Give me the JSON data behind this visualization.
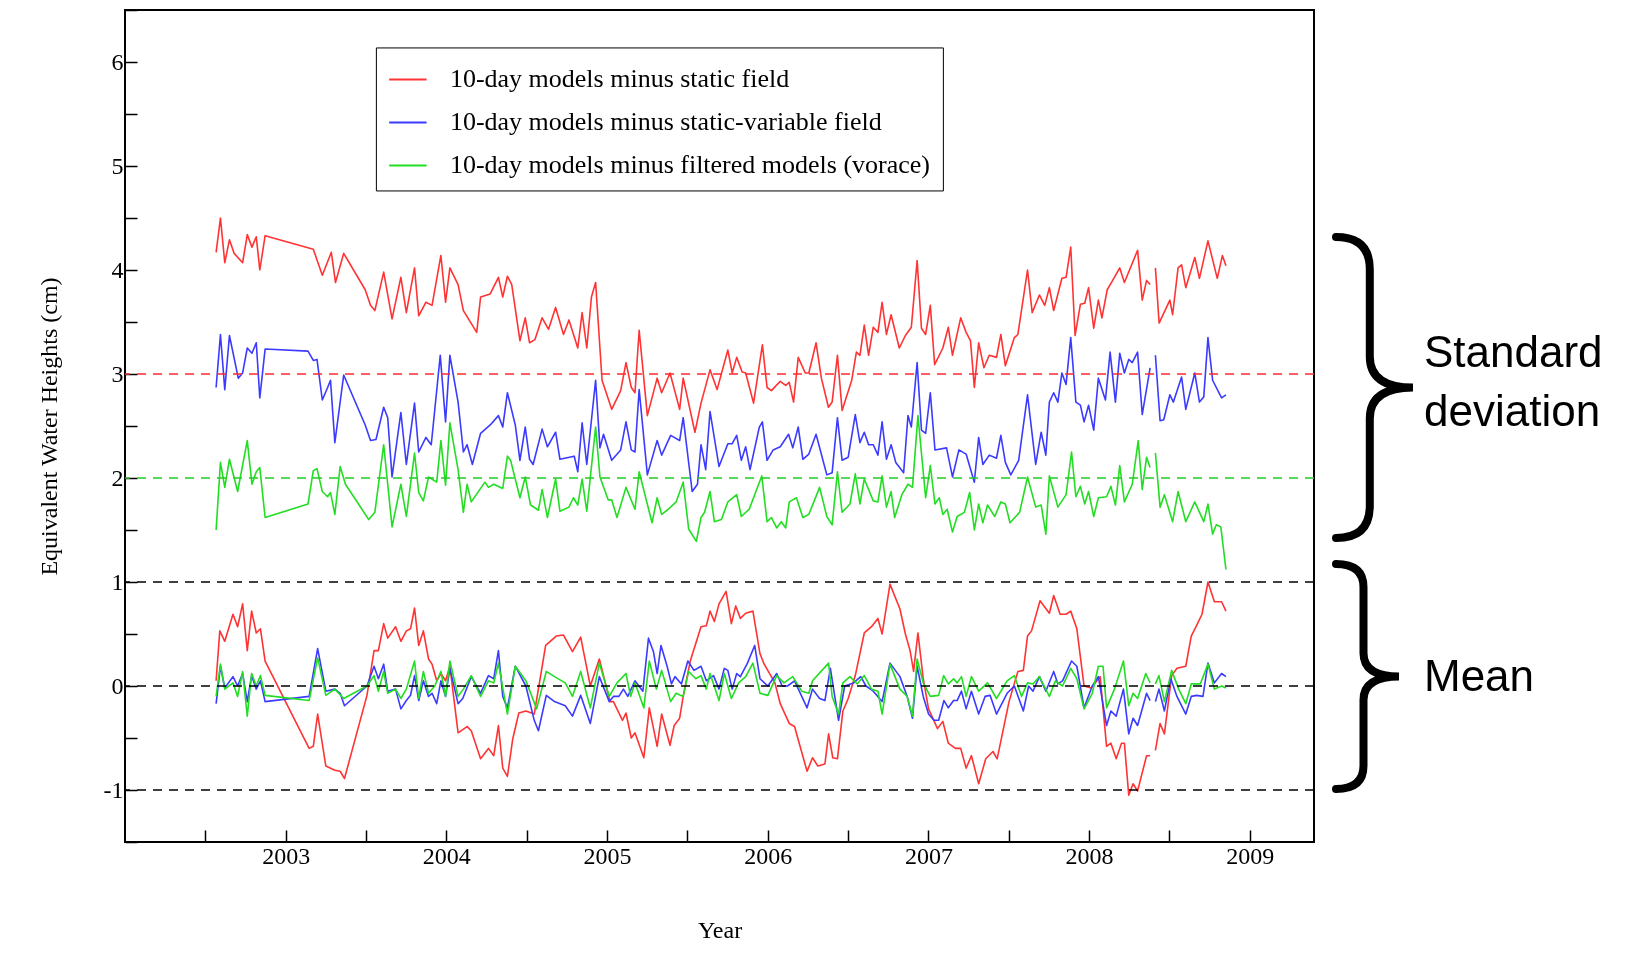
{
  "chart_data": {
    "type": "line",
    "xlabel": "Year",
    "ylabel": "Equivalent Water Heights (cm)",
    "xlim": [
      2002,
      2009.4
    ],
    "ylim": [
      -1.5,
      6.5
    ],
    "xticks": [
      {
        "value": 2002.5,
        "label": null
      },
      2003,
      {
        "value": 2003.5,
        "label": null
      },
      2004,
      {
        "value": 2004.5,
        "label": null
      },
      2005,
      {
        "value": 2005.5,
        "label": null
      },
      2006,
      {
        "value": 2006.5,
        "label": null
      },
      2007,
      {
        "value": 2007.5,
        "label": null
      },
      2008,
      {
        "value": 2008.5,
        "label": null
      },
      2009
    ],
    "yticks": [
      {
        "value": -1.5,
        "label": null
      },
      -1,
      {
        "value": -0.5,
        "label": null
      },
      0,
      {
        "value": 0.5,
        "label": null
      },
      1,
      {
        "value": 1.5,
        "label": null
      },
      2,
      {
        "value": 2.5,
        "label": null
      },
      3,
      {
        "value": 3.5,
        "label": null
      },
      4,
      {
        "value": 4.5,
        "label": null
      },
      5,
      {
        "value": 5.5,
        "label": null
      },
      6,
      {
        "value": 6.5,
        "label": null
      }
    ],
    "legend": "top",
    "annotations": [
      "Standard deviation",
      "Mean"
    ],
    "ref_lines": [
      {
        "axis": "y",
        "value": 3,
        "color": "#ff2a2a",
        "line_style": "dashed"
      },
      {
        "axis": "y",
        "value": 2,
        "color": "#22cc22",
        "line_style": "dashed"
      },
      {
        "axis": "y",
        "value": 1,
        "color": "#000000",
        "line_style": "dashed"
      },
      {
        "axis": "y",
        "value": 0,
        "color": "#000000",
        "line_style": "dashed"
      },
      {
        "axis": "y",
        "value": -1,
        "color": "#000000",
        "line_style": "dashed"
      }
    ],
    "series": [
      {
        "name": "10-day models minus static field",
        "color": "#ff3333",
        "x": [
          2002.567,
          2002.594,
          2002.621,
          2002.65,
          2002.679,
          2002.732,
          2002.761,
          2002.79,
          2002.817,
          2002.839,
          2002.872,
          2003.172,
          2003.228,
          2003.284,
          2003.31,
          2003.361,
          2003.495,
          2003.528,
          2003.555,
          2003.61,
          2003.662,
          2003.717,
          2003.751,
          2003.802,
          2003.828,
          2003.873,
          2003.911,
          2003.966,
          2003.995,
          2004.022,
          2004.073,
          2004.106,
          2004.189,
          2004.213,
          2004.273,
          2004.324,
          2004.351,
          2004.38,
          2004.407,
          2004.458,
          2004.491,
          2004.518,
          2004.551,
          2004.596,
          2004.636,
          2004.68,
          2004.729,
          2004.763,
          2004.818,
          2004.845,
          2004.874,
          2004.903,
          2004.929,
          2004.969,
          2005.029,
          2005.085,
          2005.118,
          2005.151,
          2005.174,
          2005.2,
          2005.251,
          2005.312,
          2005.34,
          2005.392,
          2005.452,
          2005.474,
          2005.547,
          2005.585,
          2005.641,
          2005.685,
          2005.752,
          2005.779,
          2005.807,
          2005.841,
          2005.863,
          2005.912,
          2005.967,
          2005.996,
          2006.023,
          2006.078,
          2006.112,
          2006.134,
          2006.161,
          2006.19,
          2006.234,
          2006.256,
          2006.301,
          2006.334,
          2006.378,
          2006.401,
          2006.434,
          2006.463,
          2006.523,
          2006.552,
          2006.574,
          2006.601,
          2006.628,
          2006.657,
          2006.686,
          2006.712,
          2006.739,
          2006.768,
          2006.819,
          2006.857,
          2006.894,
          2006.93,
          2006.957,
          2006.983,
          2007.012,
          2007.039,
          2007.09,
          2007.124,
          2007.15,
          2007.201,
          2007.235,
          2007.262,
          2007.286,
          2007.313,
          2007.346,
          2007.379,
          2007.424,
          2007.451,
          2007.479,
          2007.535,
          2007.557,
          2007.617,
          2007.646,
          2007.691,
          2007.724,
          2007.753,
          2007.78,
          2007.831,
          2007.857,
          2007.886,
          2007.913,
          2007.946,
          2007.973,
          2007.997,
          2008.029,
          2008.058,
          2008.08,
          2008.113,
          2008.147,
          2008.191,
          2008.22,
          2008.302,
          2008.331,
          2008.358,
          2008.38,
          2008.396,
          2008.413,
          2008.436,
          2008.503,
          2008.52,
          2008.554,
          2008.576,
          2008.602,
          2008.658,
          2008.687,
          2008.74,
          2008.798,
          2008.83,
          2008.852
        ],
        "values": [
          4.17,
          4.5,
          4.07,
          4.29,
          4.16,
          4.07,
          4.34,
          4.22,
          4.32,
          4.0,
          4.33,
          4.2,
          3.95,
          4.17,
          3.88,
          4.16,
          3.81,
          3.66,
          3.61,
          3.98,
          3.53,
          3.93,
          3.59,
          4.02,
          3.56,
          3.69,
          3.66,
          4.14,
          3.69,
          4.02,
          3.86,
          3.61,
          3.4,
          3.74,
          3.77,
          3.93,
          3.74,
          3.94,
          3.86,
          3.32,
          3.54,
          3.3,
          3.33,
          3.54,
          3.43,
          3.64,
          3.38,
          3.52,
          3.25,
          3.59,
          3.25,
          3.74,
          3.88,
          2.94,
          2.66,
          2.84,
          3.11,
          2.87,
          2.82,
          3.42,
          2.6,
          2.96,
          2.82,
          3.01,
          2.66,
          2.96,
          2.44,
          2.72,
          3.04,
          2.85,
          3.23,
          3.01,
          3.16,
          3.02,
          3.01,
          2.72,
          3.28,
          2.87,
          2.84,
          2.93,
          2.89,
          2.92,
          2.73,
          3.16,
          3.01,
          3.01,
          3.3,
          2.96,
          2.68,
          2.73,
          3.18,
          2.65,
          2.94,
          3.21,
          3.18,
          3.47,
          3.18,
          3.45,
          3.4,
          3.69,
          3.38,
          3.57,
          3.25,
          3.37,
          3.45,
          4.09,
          3.44,
          3.38,
          3.66,
          3.09,
          3.25,
          3.45,
          3.18,
          3.54,
          3.4,
          3.32,
          2.87,
          3.3,
          3.06,
          3.18,
          3.16,
          3.38,
          3.08,
          3.35,
          3.38,
          4.0,
          3.59,
          3.76,
          3.66,
          3.83,
          3.61,
          3.92,
          3.93,
          4.22,
          3.37,
          3.67,
          3.68,
          3.83,
          3.44,
          3.71,
          3.54,
          3.81,
          3.9,
          4.02,
          3.88,
          4.19,
          3.71,
          3.9,
          3.86,
          null,
          4.02,
          3.49,
          3.71,
          3.57,
          4.02,
          4.05,
          3.83,
          4.12,
          3.92,
          4.28,
          3.92,
          4.14,
          4.04
        ]
      },
      {
        "name": "10-day models minus static-variable field",
        "color": "#3b3bff",
        "x": [
          2002.567,
          2002.594,
          2002.621,
          2002.65,
          2002.705,
          2002.732,
          2002.761,
          2002.79,
          2002.817,
          2002.839,
          2002.872,
          2003.139,
          2003.172,
          2003.195,
          2003.228,
          2003.261,
          2003.279,
          2003.306,
          2003.361,
          2003.495,
          2003.528,
          2003.562,
          2003.61,
          2003.635,
          2003.662,
          2003.717,
          2003.751,
          2003.802,
          2003.828,
          2003.873,
          2003.906,
          2003.962,
          2003.995,
          2004.022,
          2004.073,
          2004.106,
          2004.129,
          2004.162,
          2004.213,
          2004.273,
          2004.324,
          2004.351,
          2004.38,
          2004.429,
          2004.458,
          2004.491,
          2004.518,
          2004.54,
          2004.596,
          2004.629,
          2004.68,
          2004.707,
          2004.796,
          2004.818,
          2004.845,
          2004.874,
          2004.929,
          2004.956,
          2004.978,
          2005.029,
          2005.085,
          2005.118,
          2005.151,
          2005.174,
          2005.2,
          2005.251,
          2005.312,
          2005.34,
          2005.396,
          2005.452,
          2005.474,
          2005.53,
          2005.563,
          2005.585,
          2005.614,
          2005.641,
          2005.697,
          2005.752,
          2005.779,
          2005.807,
          2005.836,
          2005.863,
          2005.89,
          2005.948,
          2005.967,
          2005.996,
          2006.034,
          2006.078,
          2006.13,
          2006.156,
          2006.19,
          2006.219,
          2006.256,
          2006.301,
          2006.368,
          2006.401,
          2006.434,
          2006.463,
          2006.501,
          2006.545,
          2006.574,
          2006.601,
          2006.628,
          2006.657,
          2006.686,
          2006.712,
          2006.739,
          2006.768,
          2006.797,
          2006.846,
          2006.873,
          2006.894,
          2006.93,
          2006.957,
          2006.983,
          2007.012,
          2007.041,
          2007.113,
          2007.15,
          2007.19,
          2007.235,
          2007.286,
          2007.313,
          2007.339,
          2007.379,
          2007.424,
          2007.451,
          2007.479,
          2007.513,
          2007.562,
          2007.617,
          2007.668,
          2007.702,
          2007.731,
          2007.753,
          2007.78,
          2007.806,
          2007.831,
          2007.857,
          2007.886,
          2007.918,
          2007.946,
          2007.969,
          2007.997,
          2008.029,
          2008.058,
          2008.102,
          2008.131,
          2008.164,
          2008.191,
          2008.22,
          2008.247,
          2008.269,
          2008.302,
          2008.331,
          2008.38,
          2008.396,
          2008.413,
          2008.442,
          2008.465,
          2008.503,
          2008.525,
          2008.576,
          2008.602,
          2008.658,
          2008.687,
          2008.714,
          2008.74,
          2008.769,
          2008.825,
          2008.852
        ],
        "values": [
          2.87,
          3.38,
          2.85,
          3.37,
          2.96,
          3.01,
          3.25,
          3.2,
          3.3,
          2.77,
          3.24,
          3.22,
          3.13,
          3.14,
          2.75,
          2.87,
          2.94,
          2.34,
          2.99,
          2.51,
          2.36,
          2.37,
          2.68,
          2.58,
          2.01,
          2.63,
          2.13,
          2.72,
          2.25,
          2.39,
          2.32,
          3.18,
          2.54,
          3.18,
          2.73,
          2.25,
          2.32,
          2.13,
          2.43,
          2.51,
          2.6,
          2.49,
          2.82,
          2.51,
          2.17,
          2.49,
          2.18,
          2.13,
          2.47,
          2.3,
          2.44,
          2.18,
          2.21,
          2.06,
          2.53,
          2.13,
          2.94,
          2.29,
          2.42,
          2.17,
          2.27,
          2.54,
          2.27,
          2.25,
          2.85,
          2.03,
          2.36,
          2.22,
          2.41,
          2.36,
          2.58,
          1.87,
          1.94,
          2.32,
          2.08,
          2.64,
          2.11,
          2.33,
          2.33,
          2.41,
          2.17,
          2.3,
          2.08,
          2.49,
          2.54,
          2.17,
          2.27,
          2.3,
          2.42,
          2.29,
          2.49,
          2.18,
          2.23,
          2.42,
          2.03,
          2.05,
          2.58,
          2.17,
          2.2,
          2.61,
          2.34,
          2.44,
          2.32,
          2.32,
          2.22,
          2.54,
          2.18,
          2.32,
          2.15,
          2.05,
          2.6,
          2.49,
          3.11,
          2.46,
          2.43,
          2.82,
          2.27,
          2.29,
          2.01,
          2.27,
          2.23,
          1.96,
          2.39,
          2.13,
          2.22,
          2.19,
          2.41,
          2.15,
          2.03,
          2.17,
          2.8,
          2.13,
          2.44,
          2.22,
          2.73,
          2.82,
          2.73,
          3.01,
          2.9,
          3.35,
          2.73,
          2.7,
          2.54,
          2.7,
          2.46,
          2.96,
          2.75,
          3.21,
          2.73,
          3.2,
          3.01,
          3.14,
          3.11,
          3.21,
          2.61,
          3.06,
          null,
          3.18,
          2.55,
          2.56,
          2.8,
          2.73,
          2.97,
          2.66,
          3.01,
          2.73,
          2.78,
          3.35,
          2.94,
          2.77,
          2.8
        ]
      },
      {
        "name": "10-day models minus filtered models (vorace)",
        "color": "#22dd22",
        "x": [
          2002.567,
          2002.594,
          2002.621,
          2002.65,
          2002.701,
          2002.761,
          2002.79,
          2002.817,
          2002.839,
          2002.872,
          2003.139,
          2003.172,
          2003.195,
          2003.228,
          2003.261,
          2003.279,
          2003.306,
          2003.339,
          2003.372,
          2003.517,
          2003.555,
          2003.61,
          2003.662,
          2003.717,
          2003.751,
          2003.802,
          2003.828,
          2003.857,
          2003.889,
          2003.94,
          2003.966,
          2003.995,
          2004.022,
          2004.073,
          2004.106,
          2004.129,
          2004.155,
          2004.24,
          2004.262,
          2004.295,
          2004.351,
          2004.38,
          2004.4,
          2004.458,
          2004.491,
          2004.524,
          2004.573,
          2004.596,
          2004.629,
          2004.68,
          2004.707,
          2004.763,
          2004.791,
          2004.818,
          2004.845,
          2004.874,
          2004.929,
          2004.956,
          2005.007,
          2005.029,
          2005.062,
          2005.118,
          2005.174,
          2005.2,
          2005.28,
          2005.312,
          2005.34,
          2005.374,
          2005.43,
          2005.474,
          2005.508,
          2005.556,
          2005.585,
          2005.607,
          2005.641,
          2005.668,
          2005.712,
          2005.752,
          2005.807,
          2005.836,
          2005.885,
          2005.963,
          2005.996,
          2006.023,
          2006.056,
          2006.085,
          2006.112,
          2006.134,
          2006.179,
          2006.219,
          2006.256,
          2006.323,
          2006.368,
          2006.401,
          2006.434,
          2006.463,
          2006.512,
          2006.545,
          2006.574,
          2006.601,
          2006.657,
          2006.686,
          2006.712,
          2006.739,
          2006.768,
          2006.79,
          2006.835,
          2006.873,
          2006.901,
          2006.935,
          2006.983,
          2007.012,
          2007.041,
          2007.068,
          2007.09,
          2007.117,
          2007.15,
          2007.179,
          2007.224,
          2007.257,
          2007.286,
          2007.313,
          2007.339,
          2007.368,
          2007.413,
          2007.451,
          2007.479,
          2007.508,
          2007.568,
          2007.617,
          2007.668,
          2007.702,
          2007.731,
          2007.753,
          2007.806,
          2007.857,
          2007.891,
          2007.918,
          2007.946,
          2007.973,
          2007.997,
          2008.029,
          2008.058,
          2008.109,
          2008.136,
          2008.164,
          2008.191,
          2008.22,
          2008.269,
          2008.306,
          2008.331,
          2008.358,
          2008.38,
          2008.396,
          2008.413,
          2008.442,
          2008.469,
          2008.52,
          2008.554,
          2008.602,
          2008.658,
          2008.714,
          2008.74,
          2008.769,
          2008.792,
          2008.82,
          2008.852
        ],
        "values": [
          1.5,
          2.15,
          1.91,
          2.18,
          1.87,
          2.36,
          1.94,
          2.06,
          2.1,
          1.62,
          1.75,
          2.07,
          2.09,
          1.87,
          1.82,
          1.86,
          1.65,
          2.11,
          1.94,
          1.6,
          1.67,
          2.32,
          1.53,
          1.94,
          1.63,
          2.24,
          1.86,
          1.78,
          2.01,
          1.96,
          2.36,
          1.93,
          2.53,
          2.08,
          1.67,
          1.94,
          1.77,
          1.96,
          1.91,
          1.94,
          1.9,
          2.21,
          2.17,
          1.81,
          2.01,
          1.74,
          1.69,
          1.89,
          1.62,
          1.99,
          1.68,
          1.72,
          1.81,
          1.74,
          1.99,
          1.68,
          2.49,
          2.01,
          1.79,
          1.79,
          1.62,
          1.91,
          1.7,
          2.06,
          1.57,
          1.81,
          1.65,
          1.69,
          1.77,
          1.96,
          1.51,
          1.39,
          1.62,
          1.67,
          1.87,
          1.58,
          1.6,
          1.77,
          1.84,
          1.63,
          1.7,
          2.02,
          1.58,
          1.62,
          1.52,
          1.58,
          1.52,
          1.77,
          1.81,
          1.62,
          1.65,
          1.91,
          1.63,
          1.55,
          2.06,
          1.67,
          1.75,
          2.04,
          1.75,
          1.99,
          1.78,
          1.77,
          2.02,
          1.72,
          1.87,
          1.62,
          1.84,
          1.94,
          1.91,
          2.6,
          1.81,
          2.12,
          1.75,
          1.81,
          1.65,
          1.7,
          1.48,
          1.63,
          1.67,
          1.86,
          1.5,
          1.75,
          1.57,
          1.74,
          1.63,
          1.77,
          1.75,
          1.57,
          1.67,
          2.01,
          1.72,
          1.74,
          1.46,
          2.02,
          1.72,
          1.84,
          2.25,
          1.82,
          1.92,
          1.75,
          1.87,
          1.63,
          1.81,
          1.82,
          1.92,
          1.74,
          2.12,
          1.77,
          1.94,
          2.36,
          1.89,
          2.2,
          2.1,
          null,
          2.24,
          1.72,
          1.84,
          1.58,
          1.87,
          1.58,
          1.77,
          1.58,
          1.75,
          1.46,
          1.55,
          1.53,
          1.12
        ]
      },
      {
        "color": "#ff3333",
        "x": [
          2002.567,
          2002.59,
          2002.621,
          2002.672,
          2002.701,
          2002.732,
          2002.761,
          2002.788,
          2002.817,
          2002.843,
          2002.872,
          2003.146,
          2003.172,
          2003.199,
          2003.25,
          2003.306,
          2003.339,
          2003.366,
          2003.506,
          2003.55,
          2003.577,
          2003.61,
          2003.635,
          2003.684,
          2003.717,
          2003.751,
          2003.777,
          2003.802,
          2003.828,
          2003.857,
          2003.889,
          2003.911,
          2003.94,
          2003.966,
          2003.995,
          2004.022,
          2004.073,
          2004.129,
          2004.155,
          2004.213,
          2004.262,
          2004.295,
          2004.324,
          2004.351,
          2004.38,
          2004.413,
          2004.451,
          2004.495,
          2004.547,
          2004.618,
          2004.684,
          2004.729,
          2004.785,
          2004.836,
          2004.896,
          2004.952,
          2005.018,
          2005.04,
          2005.096,
          2005.118,
          2005.151,
          2005.174,
          2005.229,
          2005.263,
          2005.312,
          2005.34,
          2005.392,
          2005.418,
          2005.452,
          2005.474,
          2005.518,
          2005.585,
          2005.618,
          2005.641,
          2005.668,
          2005.697,
          2005.741,
          2005.774,
          2005.801,
          2005.83,
          2005.863,
          2005.908,
          2005.952,
          2005.978,
          2006.045,
          2006.078,
          2006.134,
          2006.167,
          2006.245,
          2006.279,
          2006.312,
          2006.356,
          2006.379,
          2006.405,
          2006.434,
          2006.468,
          2006.501,
          2006.545,
          2006.601,
          2006.646,
          2006.686,
          2006.712,
          2006.761,
          2006.823,
          2006.857,
          2006.886,
          2006.908,
          2006.935,
          2006.968,
          2007.001,
          2007.057,
          2007.09,
          2007.124,
          2007.168,
          2007.201,
          2007.235,
          2007.268,
          2007.313,
          2007.357,
          2007.402,
          2007.428,
          2007.502,
          2007.557,
          2007.591,
          2007.617,
          2007.642,
          2007.695,
          2007.753,
          2007.78,
          2007.82,
          2007.857,
          2007.886,
          2007.924,
          2007.969,
          2008.013,
          2008.069,
          2008.109,
          2008.136,
          2008.169,
          2008.202,
          2008.22,
          2008.247,
          2008.274,
          2008.302,
          2008.358,
          2008.38,
          2008.396,
          2008.413,
          2008.442,
          2008.469,
          2008.514,
          2008.547,
          2008.602,
          2008.636,
          2008.669,
          2008.703,
          2008.74,
          2008.78,
          2008.825,
          2008.852
        ],
        "values": [
          0.05,
          0.53,
          0.43,
          0.69,
          0.57,
          0.79,
          0.34,
          0.72,
          0.51,
          0.55,
          0.24,
          -0.6,
          -0.58,
          -0.27,
          -0.77,
          -0.81,
          -0.82,
          -0.89,
          -0.09,
          0.34,
          0.34,
          0.6,
          0.46,
          0.57,
          0.43,
          0.53,
          0.55,
          0.75,
          0.39,
          0.53,
          0.26,
          0.21,
          0.05,
          0.12,
          0.05,
          0.19,
          -0.45,
          -0.39,
          -0.43,
          -0.7,
          -0.6,
          -0.67,
          -0.38,
          -0.79,
          -0.87,
          -0.51,
          -0.26,
          -0.24,
          -0.27,
          0.39,
          0.48,
          0.49,
          0.33,
          0.47,
          0.0,
          0.26,
          -0.15,
          -0.15,
          -0.33,
          -0.26,
          -0.5,
          -0.45,
          -0.69,
          -0.21,
          -0.58,
          -0.27,
          -0.57,
          -0.38,
          -0.31,
          -0.1,
          0.24,
          0.57,
          0.58,
          0.72,
          0.62,
          0.79,
          0.91,
          0.6,
          0.77,
          0.65,
          0.7,
          0.72,
          0.31,
          0.21,
          0.03,
          -0.17,
          -0.36,
          -0.39,
          -0.82,
          -0.69,
          -0.77,
          -0.75,
          -0.46,
          -0.69,
          -0.7,
          -0.24,
          -0.12,
          0.1,
          0.51,
          0.57,
          0.65,
          0.5,
          0.98,
          0.74,
          0.5,
          0.34,
          0.14,
          0.51,
          0.07,
          -0.22,
          -0.41,
          -0.34,
          -0.55,
          -0.6,
          -0.6,
          -0.79,
          -0.67,
          -0.94,
          -0.7,
          -0.63,
          -0.7,
          -0.15,
          0.14,
          0.15,
          0.48,
          0.53,
          0.82,
          0.7,
          0.87,
          0.69,
          0.69,
          0.72,
          0.55,
          0.0,
          -0.02,
          0.09,
          -0.58,
          -0.55,
          -0.7,
          -0.55,
          -0.55,
          -1.05,
          -0.94,
          -1.01,
          -0.67,
          -0.67,
          null,
          -0.62,
          -0.36,
          -0.46,
          0.1,
          0.17,
          0.19,
          0.48,
          0.58,
          0.69,
          1.0,
          0.81,
          0.81,
          0.72
        ]
      },
      {
        "color": "#3b3bff",
        "x": [
          2002.567,
          2002.594,
          2002.621,
          2002.672,
          2002.701,
          2002.732,
          2002.761,
          2002.788,
          2002.817,
          2002.843,
          2002.872,
          2003.146,
          2003.199,
          2003.25,
          2003.306,
          2003.339,
          2003.366,
          2003.506,
          2003.55,
          2003.577,
          2003.61,
          2003.635,
          2003.684,
          2003.717,
          2003.751,
          2003.777,
          2003.802,
          2003.828,
          2003.857,
          2003.889,
          2003.911,
          2003.94,
          2003.966,
          2003.995,
          2004.022,
          2004.073,
          2004.102,
          2004.155,
          2004.213,
          2004.262,
          2004.295,
          2004.324,
          2004.351,
          2004.38,
          2004.429,
          2004.495,
          2004.547,
          2004.573,
          2004.622,
          2004.673,
          2004.74,
          2004.785,
          2004.836,
          2004.896,
          2004.952,
          2005.014,
          2005.04,
          2005.074,
          2005.102,
          2005.129,
          2005.174,
          2005.223,
          2005.258,
          2005.289,
          2005.312,
          2005.336,
          2005.374,
          2005.401,
          2005.423,
          2005.463,
          2005.503,
          2005.541,
          2005.585,
          2005.618,
          2005.663,
          2005.697,
          2005.73,
          2005.752,
          2005.779,
          2005.807,
          2005.83,
          2005.874,
          2005.919,
          2005.952,
          2006.001,
          2006.056,
          2006.09,
          2006.123,
          2006.167,
          2006.245,
          2006.279,
          2006.323,
          2006.356,
          2006.39,
          2006.441,
          2006.479,
          2006.534,
          2006.579,
          2006.612,
          2006.657,
          2006.712,
          2006.761,
          2006.823,
          2006.868,
          2006.901,
          2006.93,
          2006.968,
          2007.001,
          2007.035,
          2007.064,
          2007.097,
          2007.124,
          2007.157,
          2007.179,
          2007.206,
          2007.235,
          2007.268,
          2007.313,
          2007.353,
          2007.384,
          2007.424,
          2007.49,
          2007.535,
          2007.591,
          2007.624,
          2007.651,
          2007.691,
          2007.731,
          2007.78,
          2007.806,
          2007.835,
          2007.891,
          2007.924,
          2007.969,
          2008.02,
          2008.058,
          2008.109,
          2008.136,
          2008.169,
          2008.214,
          2008.247,
          2008.274,
          2008.302,
          2008.358,
          2008.38,
          2008.396,
          2008.413,
          2008.435,
          2008.469,
          2008.509,
          2008.547,
          2008.602,
          2008.636,
          2008.669,
          2008.709,
          2008.74,
          2008.78,
          2008.825,
          2008.852
        ],
        "values": [
          -0.17,
          0.19,
          -0.02,
          0.09,
          0.0,
          0.12,
          -0.15,
          0.1,
          -0.03,
          0.05,
          -0.15,
          -0.1,
          0.36,
          -0.05,
          -0.03,
          -0.07,
          -0.19,
          0.0,
          0.19,
          0.07,
          0.21,
          -0.05,
          -0.03,
          -0.22,
          -0.14,
          -0.09,
          0.1,
          -0.14,
          0.05,
          -0.1,
          -0.07,
          -0.17,
          0.05,
          -0.1,
          0.17,
          -0.17,
          -0.12,
          0.09,
          -0.07,
          0.1,
          0.07,
          0.34,
          -0.1,
          -0.21,
          0.19,
          0.0,
          -0.33,
          -0.43,
          -0.09,
          -0.15,
          -0.19,
          -0.29,
          -0.09,
          -0.36,
          0.09,
          -0.15,
          -0.1,
          -0.1,
          -0.03,
          -0.1,
          0.05,
          -0.05,
          0.46,
          0.33,
          0.12,
          0.39,
          0.19,
          0.02,
          0.09,
          0.02,
          0.24,
          0.15,
          0.19,
          0.05,
          0.1,
          -0.03,
          0.17,
          0.15,
          -0.03,
          0.12,
          0.09,
          0.22,
          0.39,
          0.07,
          0.0,
          0.12,
          0.0,
          0.0,
          0.05,
          -0.21,
          -0.03,
          -0.12,
          -0.14,
          0.17,
          -0.33,
          0.0,
          0.03,
          0.09,
          0.0,
          -0.05,
          -0.15,
          0.22,
          0.09,
          -0.1,
          -0.31,
          0.19,
          -0.1,
          -0.27,
          -0.33,
          -0.33,
          -0.14,
          -0.21,
          -0.14,
          -0.14,
          -0.05,
          -0.22,
          -0.05,
          -0.27,
          -0.1,
          -0.09,
          -0.27,
          -0.07,
          0.0,
          -0.24,
          0.0,
          -0.05,
          0.09,
          -0.05,
          0.14,
          0.02,
          0.05,
          0.24,
          0.19,
          -0.21,
          0.0,
          0.09,
          -0.38,
          -0.24,
          -0.29,
          -0.03,
          -0.46,
          -0.31,
          -0.38,
          -0.07,
          -0.14,
          null,
          -0.15,
          -0.03,
          -0.24,
          0.07,
          -0.1,
          -0.27,
          -0.1,
          -0.09,
          -0.1,
          0.22,
          0.03,
          0.12,
          0.09
        ]
      },
      {
        "color": "#22dd22",
        "x": [
          2002.567,
          2002.594,
          2002.621,
          2002.672,
          2002.701,
          2002.732,
          2002.761,
          2002.788,
          2002.817,
          2002.843,
          2002.872,
          2003.146,
          2003.199,
          2003.25,
          2003.306,
          2003.361,
          2003.506,
          2003.55,
          2003.577,
          2003.61,
          2003.635,
          2003.684,
          2003.717,
          2003.751,
          2003.802,
          2003.828,
          2003.857,
          2003.889,
          2003.928,
          2003.966,
          2003.995,
          2004.022,
          2004.073,
          2004.106,
          2004.155,
          2004.213,
          2004.262,
          2004.295,
          2004.324,
          2004.38,
          2004.429,
          2004.495,
          2004.562,
          2004.622,
          2004.673,
          2004.74,
          2004.785,
          2004.836,
          2004.896,
          2004.952,
          2005.014,
          2005.062,
          2005.118,
          2005.147,
          2005.174,
          2005.229,
          2005.263,
          2005.307,
          2005.34,
          2005.396,
          2005.43,
          2005.474,
          2005.508,
          2005.552,
          2005.585,
          2005.618,
          2005.641,
          2005.697,
          2005.73,
          2005.774,
          2005.819,
          2005.863,
          2005.908,
          2005.952,
          2006.001,
          2006.056,
          2006.101,
          2006.156,
          2006.212,
          2006.256,
          2006.279,
          2006.379,
          2006.401,
          2006.441,
          2006.468,
          2006.512,
          2006.557,
          2006.601,
          2006.646,
          2006.686,
          2006.712,
          2006.761,
          2006.823,
          2006.868,
          2006.901,
          2006.93,
          2006.968,
          2007.012,
          2007.064,
          2007.095,
          2007.124,
          2007.157,
          2007.179,
          2007.206,
          2007.235,
          2007.268,
          2007.313,
          2007.368,
          2007.424,
          2007.49,
          2007.535,
          2007.58,
          2007.617,
          2007.651,
          2007.691,
          2007.753,
          2007.791,
          2007.835,
          2007.886,
          2007.924,
          2007.969,
          2008.02,
          2008.058,
          2008.087,
          2008.109,
          2008.158,
          2008.214,
          2008.247,
          2008.274,
          2008.302,
          2008.353,
          2008.38,
          2008.396,
          2008.413,
          2008.435,
          2008.469,
          2008.514,
          2008.558,
          2008.602,
          2008.636,
          2008.692,
          2008.74,
          2008.78,
          2008.825,
          2008.852
        ],
        "values": [
          -0.1,
          0.21,
          -0.03,
          0.03,
          -0.1,
          0.14,
          -0.29,
          0.12,
          0.0,
          0.1,
          -0.09,
          -0.14,
          0.27,
          -0.09,
          -0.03,
          -0.12,
          0.0,
          0.1,
          -0.05,
          0.14,
          -0.07,
          -0.03,
          -0.12,
          -0.03,
          0.24,
          -0.12,
          0.14,
          -0.07,
          0.0,
          0.14,
          -0.1,
          0.24,
          -0.1,
          -0.03,
          0.1,
          -0.1,
          0.05,
          0.03,
          0.22,
          -0.27,
          0.19,
          0.05,
          -0.22,
          0.14,
          0.09,
          0.03,
          -0.1,
          0.14,
          -0.21,
          0.22,
          -0.1,
          0.03,
          0.12,
          -0.1,
          0.03,
          -0.21,
          0.24,
          -0.03,
          0.15,
          -0.15,
          -0.07,
          -0.1,
          0.14,
          0.07,
          0.1,
          -0.03,
          0.12,
          -0.14,
          0.12,
          -0.12,
          0.03,
          0.09,
          0.22,
          -0.07,
          -0.09,
          0.1,
          0.03,
          0.09,
          -0.05,
          -0.07,
          0.05,
          0.22,
          -0.1,
          -0.27,
          0.03,
          0.09,
          0.02,
          0.1,
          -0.03,
          -0.05,
          -0.27,
          0.21,
          -0.03,
          -0.1,
          -0.29,
          0.26,
          0.03,
          -0.1,
          -0.09,
          0.1,
          0.02,
          0.07,
          0.03,
          0.09,
          -0.1,
          0.09,
          -0.05,
          0.03,
          -0.12,
          0.05,
          0.1,
          -0.1,
          0.03,
          0.02,
          0.09,
          -0.1,
          0.05,
          0.0,
          0.17,
          0.07,
          -0.22,
          -0.07,
          0.19,
          0.19,
          -0.21,
          -0.03,
          0.24,
          -0.19,
          -0.07,
          -0.12,
          0.12,
          0.03,
          null,
          0.02,
          0.1,
          -0.15,
          0.15,
          -0.03,
          -0.17,
          0.02,
          0.02,
          0.21,
          -0.03,
          0.0,
          -0.02
        ]
      }
    ]
  }
}
